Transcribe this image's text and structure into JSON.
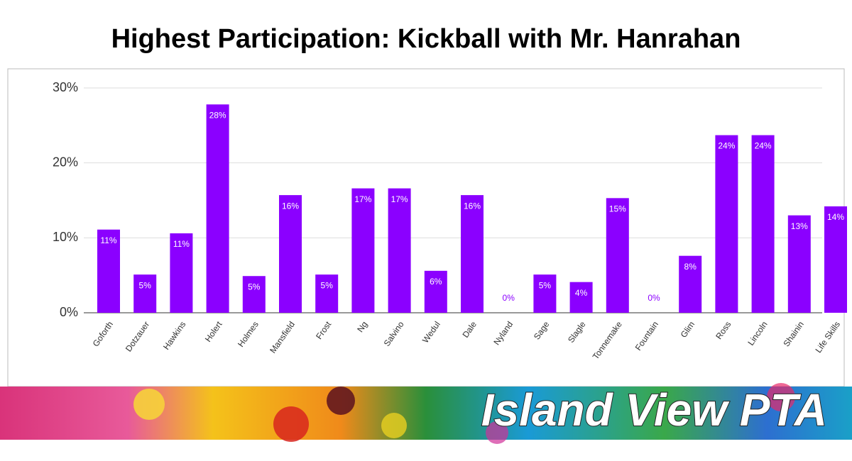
{
  "chart_data": {
    "type": "bar",
    "title": "Highest Participation: Kickball with Mr. Hanrahan",
    "categories": [
      "Goforth",
      "Dotzauer",
      "Hawkins",
      "Holert",
      "Holmes",
      "Mansfield",
      "Frost",
      "Ng",
      "Salvino",
      "Wedul",
      "Dale",
      "Nyland",
      "Sage",
      "Slagle",
      "Tonnemake",
      "Fountain",
      "Glim",
      "Ross",
      "Lincoln",
      "Shainin",
      "Life Skills"
    ],
    "values": [
      11.1,
      5.1,
      10.6,
      27.8,
      4.9,
      15.7,
      5.1,
      16.6,
      16.6,
      5.6,
      15.7,
      0,
      5.1,
      4.1,
      15.3,
      0,
      7.6,
      23.7,
      23.7,
      13.0,
      14.2
    ],
    "value_labels": [
      "11%",
      "5%",
      "11%",
      "28%",
      "5%",
      "16%",
      "5%",
      "17%",
      "17%",
      "6%",
      "16%",
      "0%",
      "5%",
      "4%",
      "15%",
      "0%",
      "8%",
      "24%",
      "24%",
      "13%",
      "14%"
    ],
    "color": "#8b00ff",
    "ylim": [
      0,
      30
    ],
    "yticks": [
      {
        "value": 0,
        "label": "0%"
      },
      {
        "value": 10,
        "label": "10%"
      },
      {
        "value": 20,
        "label": "20%"
      },
      {
        "value": 30,
        "label": "30%"
      }
    ],
    "grid": true
  },
  "footer_banner": "Island View PTA"
}
